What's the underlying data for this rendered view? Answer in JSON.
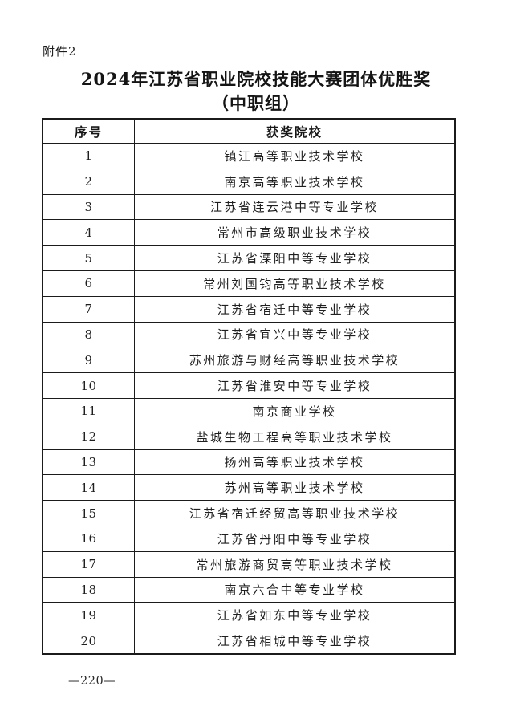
{
  "page": {
    "attachment_label": "附件2",
    "title_line1": "2024年江苏省职业院校技能大赛团体优胜奖",
    "title_line2": "（中职组）",
    "footer_page_number": "—220—"
  },
  "table": {
    "headers": [
      "序号",
      "获奖院校"
    ],
    "rows": [
      {
        "no": "1",
        "school": "镇江高等职业技术学校"
      },
      {
        "no": "2",
        "school": "南京高等职业技术学校"
      },
      {
        "no": "3",
        "school": "江苏省连云港中等专业学校"
      },
      {
        "no": "4",
        "school": "常州市高级职业技术学校"
      },
      {
        "no": "5",
        "school": "江苏省溧阳中等专业学校"
      },
      {
        "no": "6",
        "school": "常州刘国钧高等职业技术学校"
      },
      {
        "no": "7",
        "school": "江苏省宿迁中等专业学校"
      },
      {
        "no": "8",
        "school": "江苏省宜兴中等专业学校"
      },
      {
        "no": "9",
        "school": "苏州旅游与财经高等职业技术学校"
      },
      {
        "no": "10",
        "school": "江苏省淮安中等专业学校"
      },
      {
        "no": "11",
        "school": "南京商业学校"
      },
      {
        "no": "12",
        "school": "盐城生物工程高等职业技术学校"
      },
      {
        "no": "13",
        "school": "扬州高等职业技术学校"
      },
      {
        "no": "14",
        "school": "苏州高等职业技术学校"
      },
      {
        "no": "15",
        "school": "江苏省宿迁经贸高等职业技术学校"
      },
      {
        "no": "16",
        "school": "江苏省丹阳中等专业学校"
      },
      {
        "no": "17",
        "school": "常州旅游商贸高等职业技术学校"
      },
      {
        "no": "18",
        "school": "南京六合中等专业学校"
      },
      {
        "no": "19",
        "school": "江苏省如东中等专业学校"
      },
      {
        "no": "20",
        "school": "江苏省相城中等专业学校"
      }
    ]
  },
  "colors": {
    "text": "#1c1c1c",
    "border": "#1b1b1b",
    "page_background": "#ffffff"
  }
}
